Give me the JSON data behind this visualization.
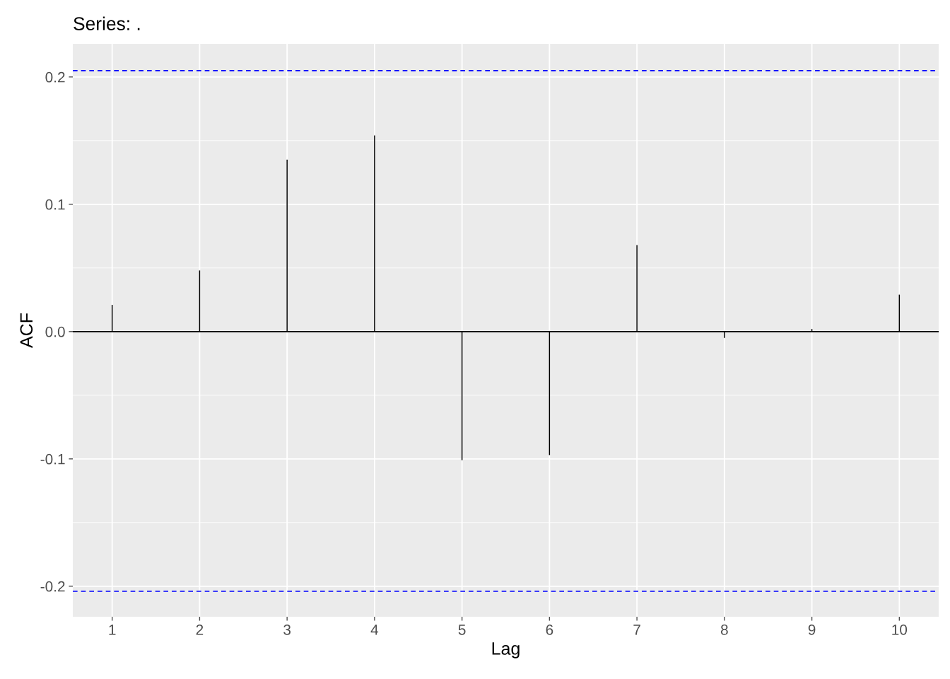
{
  "chart_data": {
    "type": "bar",
    "title": "Series: .",
    "xlabel": "Lag",
    "ylabel": "ACF",
    "x": [
      1,
      2,
      3,
      4,
      5,
      6,
      7,
      8,
      9,
      10
    ],
    "series": [
      {
        "color": "#000000",
        "values": [
          0.021,
          0.048,
          0.135,
          0.154,
          -0.101,
          -0.097,
          0.068,
          -0.005,
          0.002,
          0.029
        ]
      }
    ],
    "xlim": [
      0.55,
      10.45
    ],
    "xticks": [
      1,
      2,
      3,
      4,
      5,
      6,
      7,
      8,
      9,
      10
    ],
    "ylim": [
      -0.224,
      0.226
    ],
    "yticks": [
      -0.2,
      -0.1,
      {
        "value": 0,
        "label": "0.0"
      },
      0.1,
      0.2
    ],
    "grid": true,
    "ref_lines": [
      {
        "axis": "y",
        "value": 0.205,
        "color": "#0000ff",
        "line_style": "dashed"
      },
      {
        "axis": "y",
        "value": -0.204,
        "color": "#0000ff",
        "line_style": "dashed"
      },
      {
        "axis": "y",
        "value": 0,
        "color": "#000000",
        "line_style": "solid"
      }
    ]
  }
}
